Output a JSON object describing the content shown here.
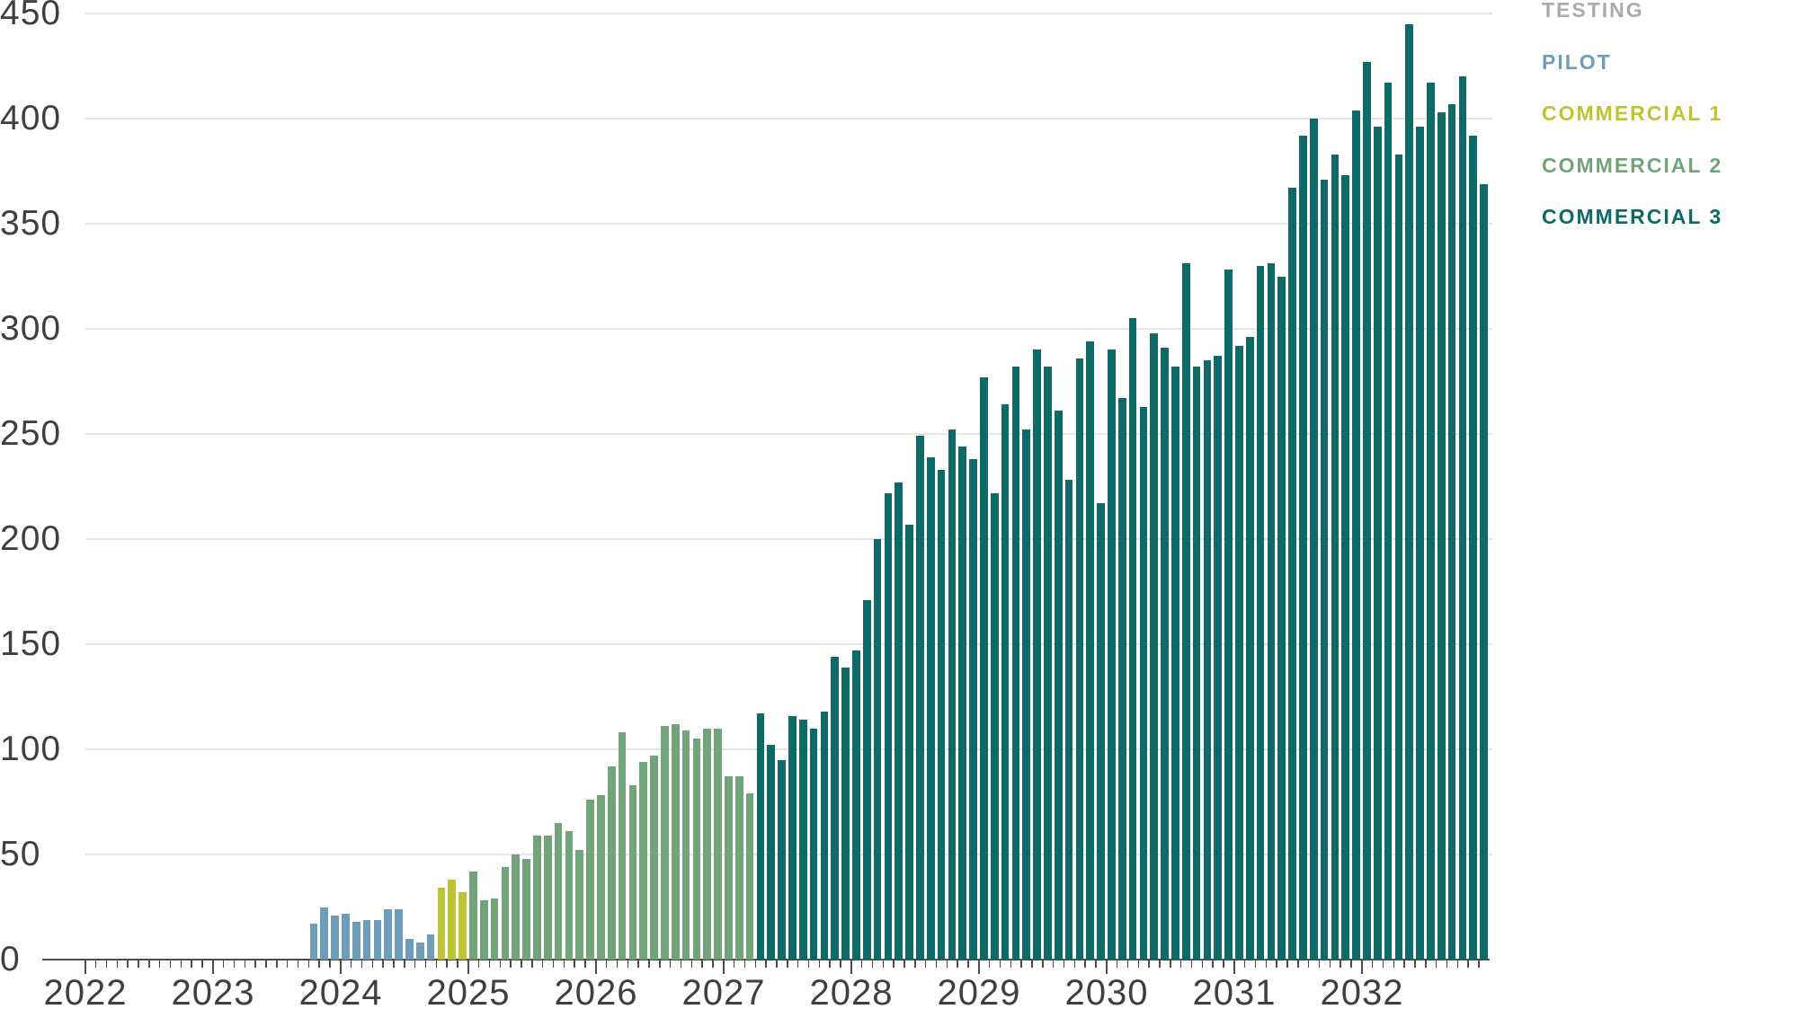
{
  "chart_data": {
    "type": "bar",
    "title": "",
    "xlabel": "",
    "ylabel": "",
    "grid": true,
    "legend_position": "top-right",
    "x_axis": {
      "unit": "month",
      "start_year": 2022,
      "end_year": 2032,
      "year_labels": [
        "2022",
        "2023",
        "2024",
        "2025",
        "2026",
        "2027",
        "2028",
        "2029",
        "2030",
        "2031",
        "2032"
      ]
    },
    "y_axis": {
      "min": 0,
      "max": 450,
      "step": 50,
      "tick_labels": [
        "0",
        "50",
        "100",
        "150",
        "200",
        "250",
        "300",
        "350",
        "400",
        "450"
      ]
    },
    "series": [
      {
        "name": "TESTING",
        "color": "#a9abad",
        "start_year": null,
        "start_month": null,
        "values": []
      },
      {
        "name": "PILOT",
        "color": "#6d9db9",
        "start_year": 2023,
        "start_month": 10,
        "values": [
          17,
          25,
          21,
          22,
          18,
          19,
          19,
          24,
          24,
          10,
          8,
          12
        ]
      },
      {
        "name": "COMMERCIAL 1",
        "color": "#bec431",
        "start_year": 2024,
        "start_month": 10,
        "values": [
          34,
          38,
          32
        ]
      },
      {
        "name": "COMMERCIAL 2",
        "color": "#72a47a",
        "start_year": 2025,
        "start_month": 1,
        "values": [
          42,
          28,
          29,
          44,
          50,
          48,
          59,
          59,
          65,
          61,
          52,
          76,
          78,
          92,
          108,
          83,
          94,
          97,
          111,
          112,
          109,
          105,
          110,
          110,
          87,
          87,
          79
        ]
      },
      {
        "name": "COMMERCIAL 3",
        "color": "#0d6a66",
        "start_year": 2027,
        "start_month": 4,
        "values": [
          117,
          102,
          95,
          116,
          114,
          110,
          118,
          144,
          139,
          147,
          171,
          200,
          222,
          227,
          207,
          249,
          239,
          233,
          252,
          244,
          238,
          277,
          222,
          264,
          282,
          252,
          290,
          282,
          261,
          228,
          286,
          294,
          217,
          290,
          267,
          305,
          263,
          298,
          291,
          282,
          331,
          282,
          285,
          287,
          328,
          292,
          296,
          330,
          331,
          325,
          367,
          392,
          400,
          371,
          383,
          373,
          404,
          427,
          396,
          417,
          383,
          445,
          396,
          417,
          403,
          407,
          420,
          392,
          369
        ]
      }
    ]
  }
}
